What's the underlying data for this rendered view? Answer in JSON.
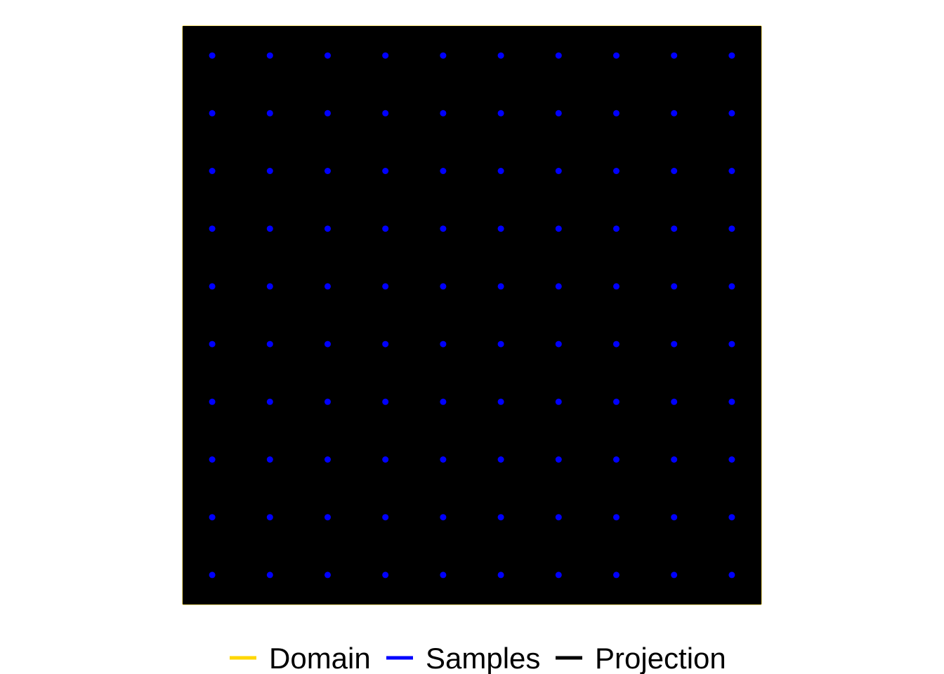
{
  "chart_data": {
    "type": "scatter",
    "title": "",
    "xlabel": "",
    "ylabel": "",
    "grid": false,
    "axes_visible": false,
    "legend_position": "bottom",
    "xlim": [
      0,
      1
    ],
    "ylim": [
      0,
      1
    ],
    "domain": {
      "name": "Domain",
      "color": "#FFD700",
      "polygon": [
        [
          0,
          0
        ],
        [
          1,
          0
        ],
        [
          1,
          1
        ],
        [
          0,
          1
        ]
      ]
    },
    "projection": {
      "name": "Projection",
      "color": "#000000",
      "polygon": [
        [
          0,
          0
        ],
        [
          1,
          0
        ],
        [
          1,
          1
        ],
        [
          0,
          1
        ]
      ]
    },
    "samples": {
      "name": "Samples",
      "color": "#0000FF",
      "x": [
        0.05,
        0.15,
        0.25,
        0.35,
        0.45,
        0.55,
        0.65,
        0.75,
        0.85,
        0.95
      ],
      "y": [
        0.05,
        0.15,
        0.25,
        0.35,
        0.45,
        0.55,
        0.65,
        0.75,
        0.85,
        0.95
      ]
    }
  },
  "legend": [
    {
      "label": "Domain",
      "color": "#FFD700"
    },
    {
      "label": "Samples",
      "color": "#0000FF"
    },
    {
      "label": "Projection",
      "color": "#000000"
    }
  ]
}
